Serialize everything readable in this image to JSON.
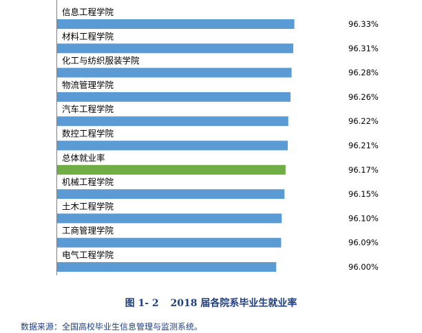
{
  "chart_data": {
    "type": "bar",
    "orientation": "horizontal",
    "categories": [
      "信息工程学院",
      "材料工程学院",
      "化工与纺织服装学院",
      "物流管理学院",
      "汽车工程学院",
      "数控工程学院",
      "总体就业率",
      "机械工程学院",
      "土木工程学院",
      "工商管理学院",
      "电气工程学院"
    ],
    "values": [
      96.33,
      96.31,
      96.28,
      96.26,
      96.22,
      96.21,
      96.17,
      96.15,
      96.1,
      96.09,
      96.0
    ],
    "value_labels": [
      "96.33%",
      "96.31%",
      "96.28%",
      "96.26%",
      "96.22%",
      "96.21%",
      "96.17%",
      "96.15%",
      "96.10%",
      "96.09%",
      "96.00%"
    ],
    "highlight_index": 6,
    "xlim": [
      92,
      97.2
    ],
    "colors": {
      "bar": "#5b9bd5",
      "highlight": "#70ad47"
    },
    "grid": false,
    "legend": "none"
  },
  "caption": {
    "figure_number": "图 1- 2",
    "title": "2018 届各院系毕业生就业率"
  },
  "source_note": "数据来源：全国高校毕业生信息管理与监测系统。"
}
